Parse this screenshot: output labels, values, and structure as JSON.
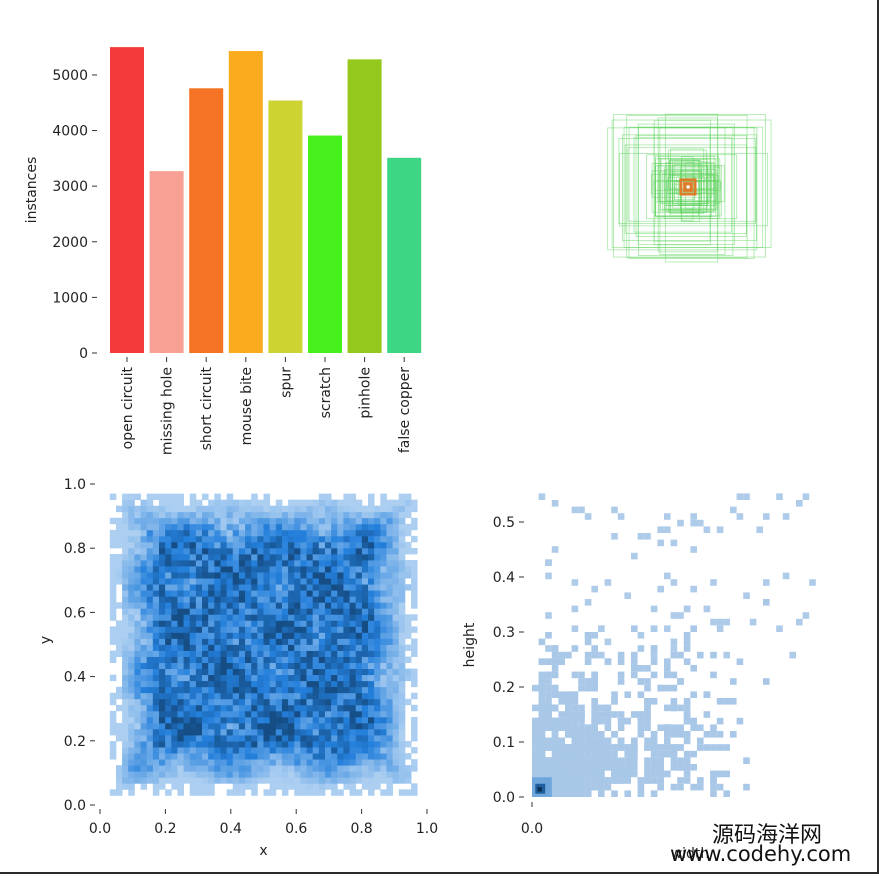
{
  "chart_data": [
    {
      "type": "bar",
      "categories": [
        "open circuit",
        "missing hole",
        "short circuit",
        "mouse bite",
        "spur",
        "scratch",
        "pinhole",
        "false copper"
      ],
      "values": [
        5500,
        3270,
        4760,
        5430,
        4540,
        3910,
        5280,
        3510
      ],
      "colors": [
        "#f43a3a",
        "#f7a093",
        "#f47324",
        "#fbab1e",
        "#cdd432",
        "#46f01a",
        "#94c81c",
        "#3dd684"
      ],
      "ylabel": "instances",
      "xlabel": "",
      "ylim": [
        0,
        5700
      ],
      "yticks": [
        0,
        1000,
        2000,
        3000,
        4000,
        5000
      ],
      "grid": false
    },
    {
      "type": "scatter",
      "description_kind": "overlaid bounding boxes centered at (0.5, 0.5)",
      "box_color": "#5fd35f",
      "center_color": "#e07a2a"
    },
    {
      "type": "heatmap",
      "xlabel": "x",
      "ylabel": "y",
      "xlim": [
        0.0,
        1.0
      ],
      "ylim": [
        0.0,
        1.0
      ],
      "xticks": [
        "0.0",
        "0.2",
        "0.4",
        "0.6",
        "0.8",
        "1.0"
      ],
      "yticks": [
        "0.0",
        "0.2",
        "0.4",
        "0.6",
        "0.8",
        "1.0"
      ],
      "color": "#1f77d4",
      "extent": [
        0.03,
        0.97
      ]
    },
    {
      "type": "heatmap",
      "xlabel": "width",
      "ylabel": "height",
      "xlim": [
        0.0,
        0.58
      ],
      "ylim": [
        0.0,
        0.56
      ],
      "xticks": [
        "0.0"
      ],
      "yticks": [
        "0.0",
        "0.1",
        "0.2",
        "0.3",
        "0.4",
        "0.5"
      ],
      "color": "#1f77d4"
    }
  ],
  "watermark": {
    "line1": "源码海洋网",
    "line2": "www.codehy.com"
  }
}
